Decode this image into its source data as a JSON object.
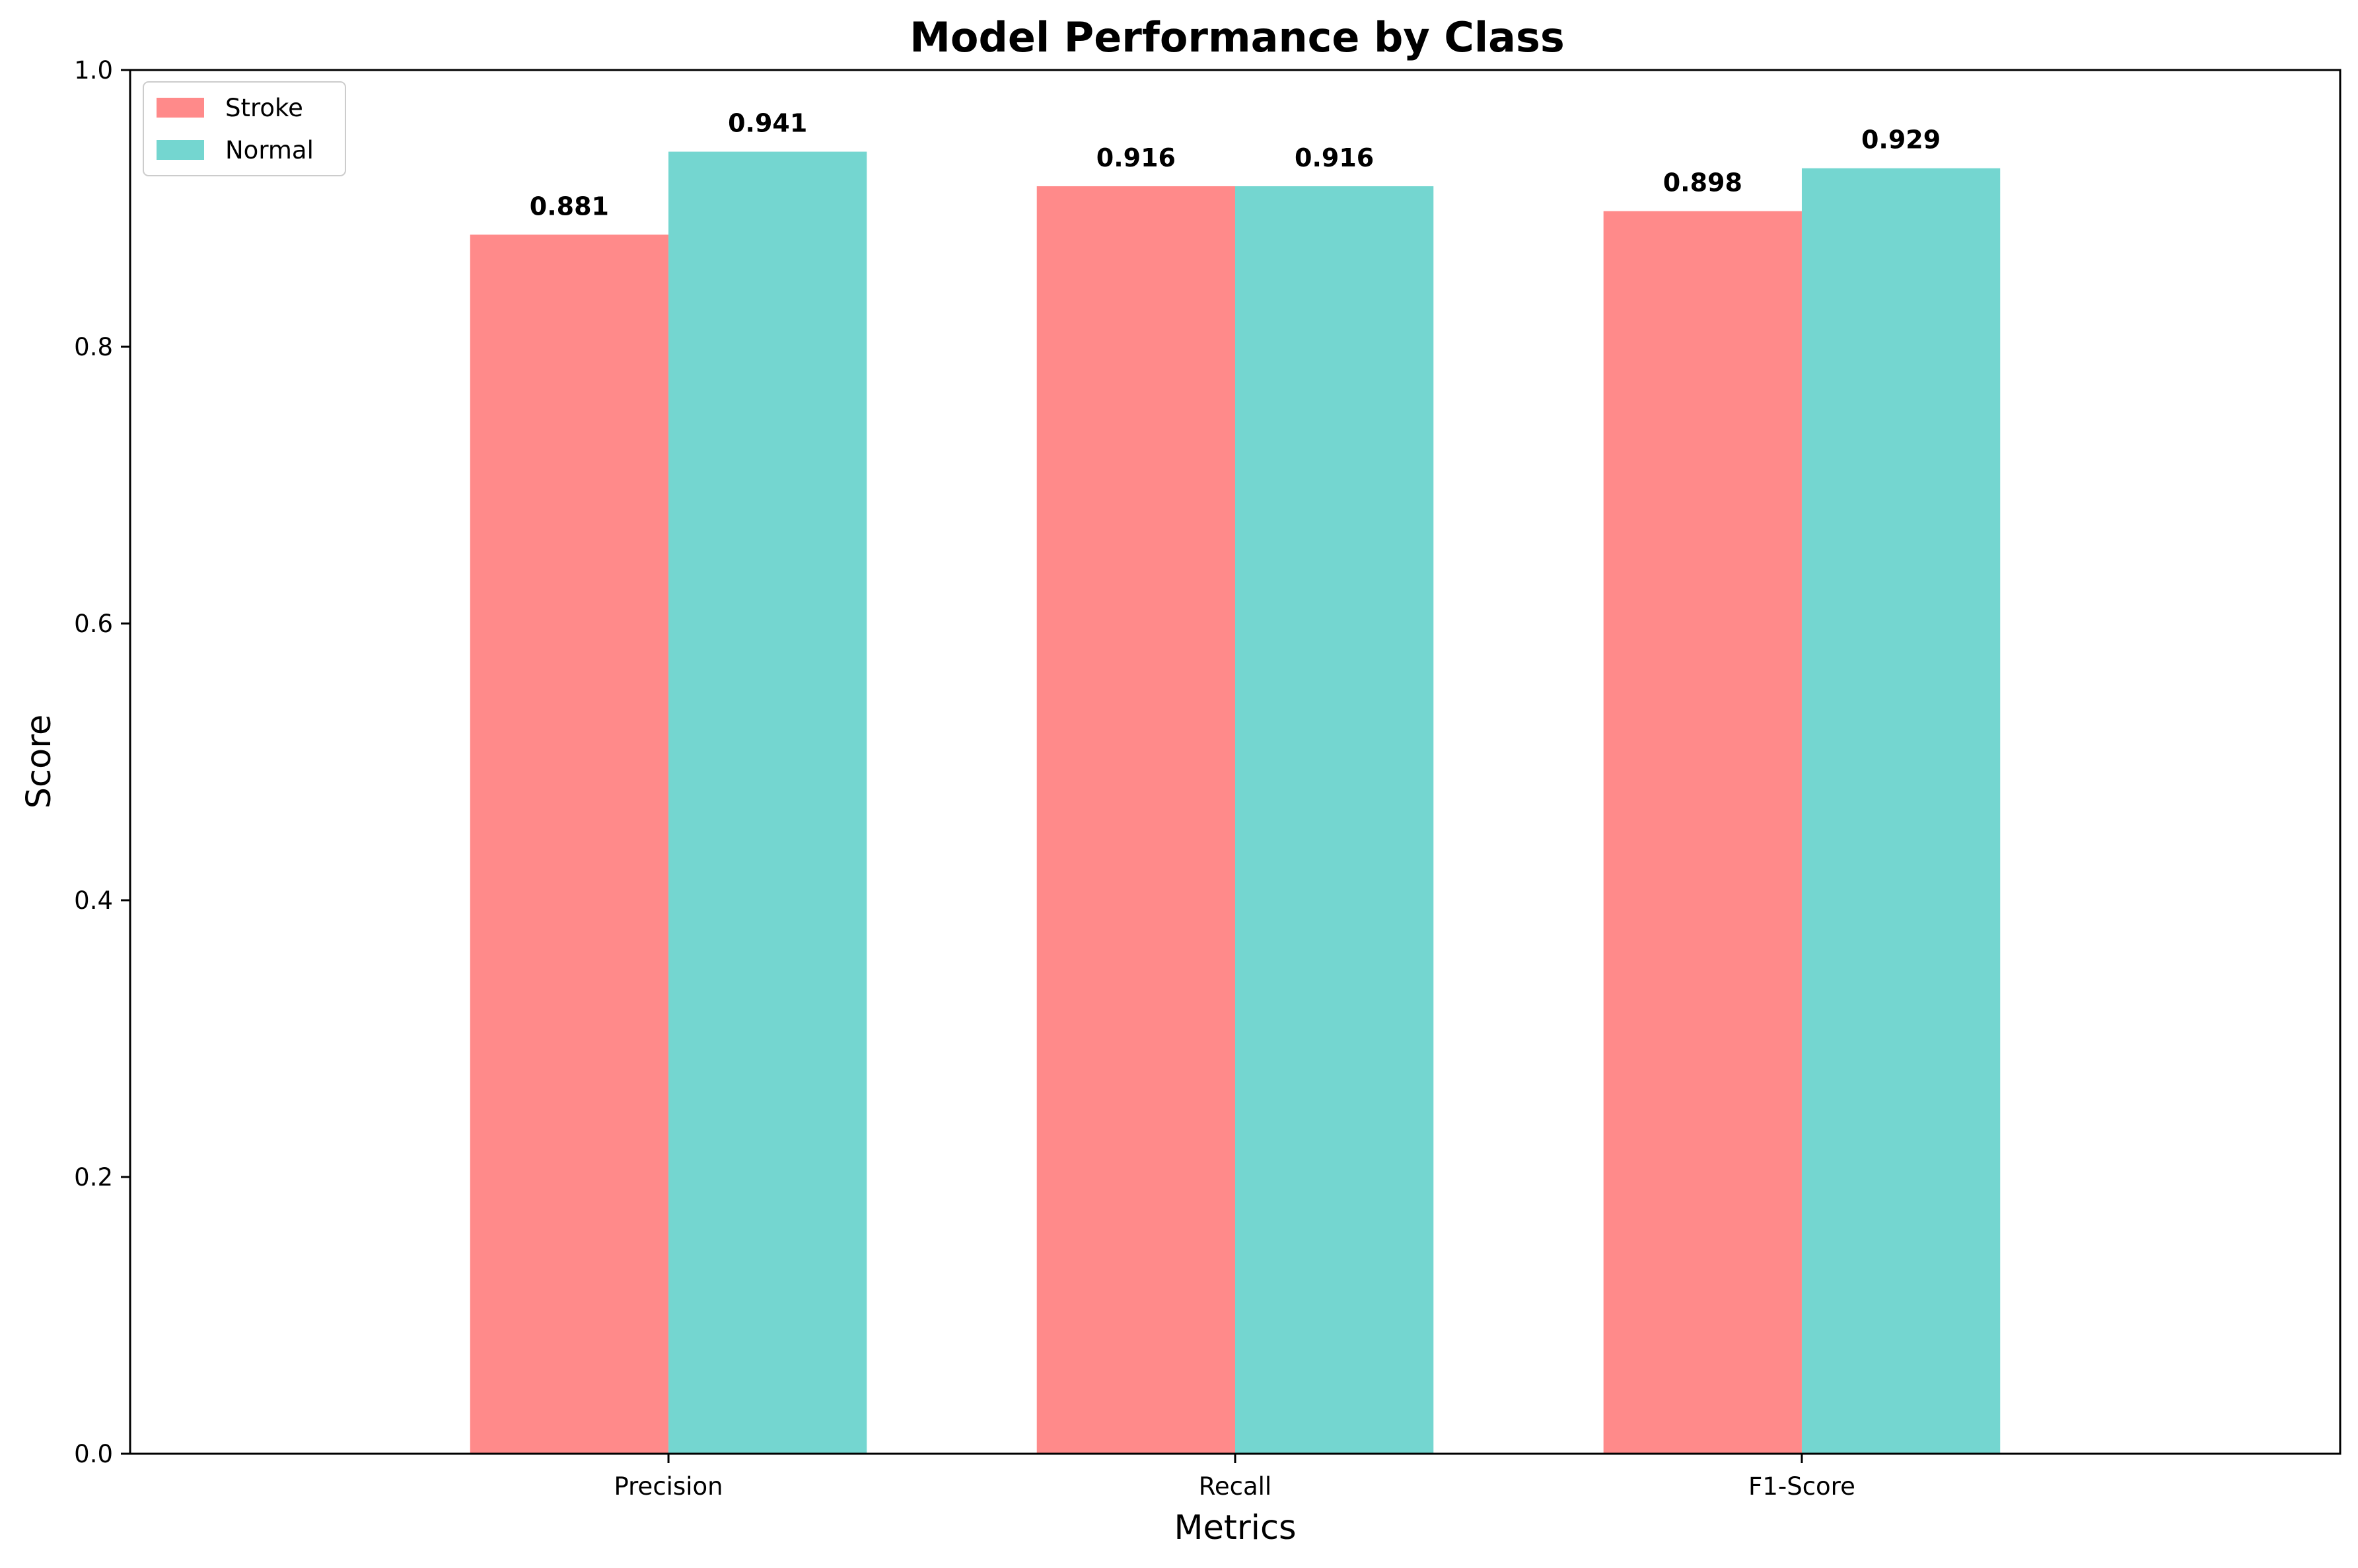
{
  "chart_data": {
    "type": "bar",
    "title": "Model Performance by Class",
    "xlabel": "Metrics",
    "ylabel": "Score",
    "categories": [
      "Precision",
      "Recall",
      "F1-Score"
    ],
    "series": [
      {
        "name": "Stroke",
        "color": "#ff8a8a",
        "values": [
          0.881,
          0.916,
          0.898
        ],
        "labels": [
          "0.881",
          "0.916",
          "0.898"
        ]
      },
      {
        "name": "Normal",
        "color": "#74d6d0",
        "values": [
          0.941,
          0.916,
          0.929
        ],
        "labels": [
          "0.941",
          "0.916",
          "0.929"
        ]
      }
    ],
    "ylim": [
      0,
      1.0
    ],
    "yticks": [
      0.0,
      0.2,
      0.4,
      0.6,
      0.8,
      1.0
    ],
    "ytick_labels": [
      "0.0",
      "0.2",
      "0.4",
      "0.6",
      "0.8",
      "1.0"
    ],
    "grid": false,
    "legend_position": "top-left"
  }
}
